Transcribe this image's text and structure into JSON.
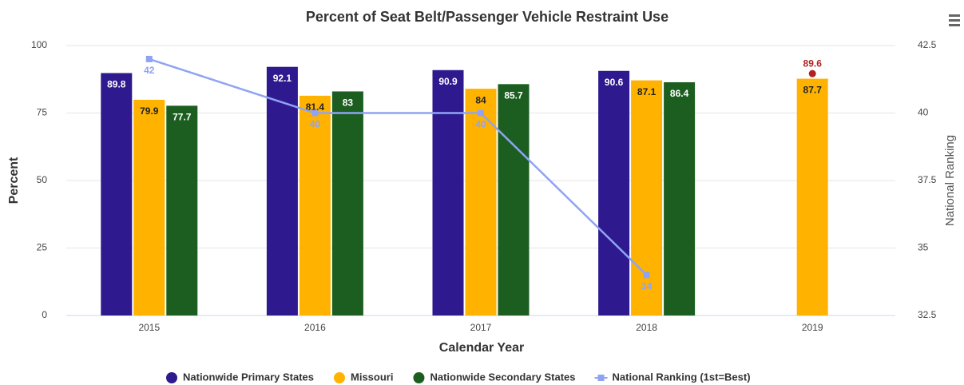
{
  "chart_data": {
    "type": "bar",
    "title": "Percent of Seat Belt/Passenger Vehicle Restraint Use",
    "x_label": "Calendar Year",
    "y_label": "Percent",
    "y2_label": "National Ranking",
    "categories": [
      "2015",
      "2016",
      "2017",
      "2018",
      "2019"
    ],
    "series": [
      {
        "name": "Nationwide Primary States",
        "type": "bar",
        "color": "#2e1a8e",
        "label_color": "#ffffff",
        "values": [
          89.8,
          92.1,
          90.9,
          90.6,
          null
        ]
      },
      {
        "name": "Missouri",
        "type": "bar",
        "color": "#ffb300",
        "label_color": "#222222",
        "values": [
          79.9,
          81.4,
          84,
          87.1,
          87.7
        ]
      },
      {
        "name": "Nationwide Secondary States",
        "type": "bar",
        "color": "#1b5e20",
        "label_color": "#ffffff",
        "values": [
          77.7,
          83,
          85.7,
          86.4,
          null
        ]
      },
      {
        "name": "National Ranking (1st=Best)",
        "type": "line",
        "axis": "y2",
        "color": "#8fa3f5",
        "values": [
          42,
          40,
          40,
          34,
          null
        ]
      },
      {
        "type": "scatter",
        "color": "#b22222",
        "values": [
          null,
          null,
          null,
          null,
          89.6
        ]
      }
    ],
    "ylim": [
      0,
      100
    ],
    "yticks": [
      0,
      25,
      50,
      75,
      100
    ],
    "y2lim": [
      32.5,
      42.5
    ],
    "y2ticks": [
      32.5,
      35,
      37.5,
      40,
      42.5
    ],
    "grid": true,
    "legend": "bottom"
  }
}
